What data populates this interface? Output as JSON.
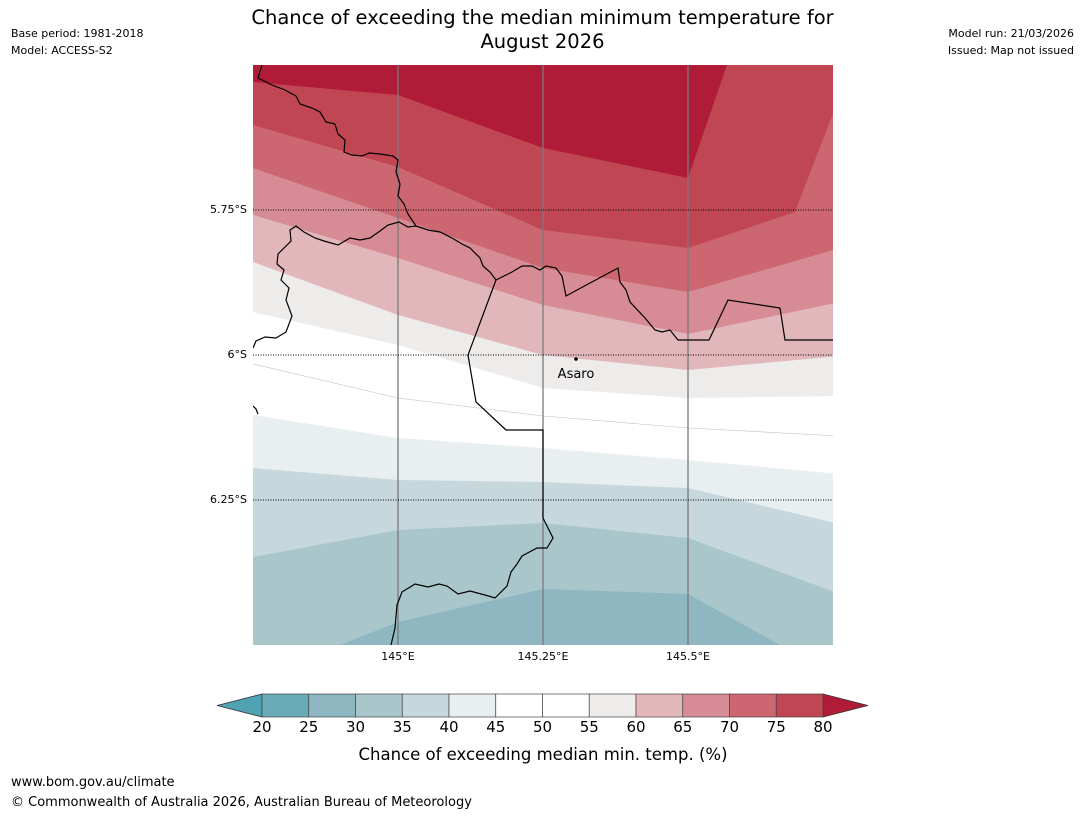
{
  "header": {
    "title_line1": "Chance of exceeding the median minimum temperature for",
    "title_line2": "August 2026",
    "base_period": "Base period: 1981-2018",
    "model": "Model: ACCESS-S2",
    "model_run": "Model run: 21/03/2026",
    "issued": "Issued: Map not issued"
  },
  "map": {
    "latitude_labels": [
      "5.75°S",
      "6°S",
      "6.25°S"
    ],
    "longitude_labels": [
      "145°E",
      "145.25°E",
      "145.5°E"
    ],
    "place": {
      "name": "Asaro"
    },
    "colors": {
      "p80plus": "#b01c38",
      "p75_80": "#c04653",
      "p70_75": "#cc6670",
      "p65_70": "#d78c95",
      "p60_65": "#e2b7bc",
      "p55_60": "#eeeceb",
      "p45_55": "#ffffff",
      "p40_45": "#e9eff1",
      "p35_40": "#c6d8dc",
      "p30_35": "#a9c6cb",
      "p25_30": "#8eb7c2",
      "p20_25": "#6aabb8"
    }
  },
  "colorbar": {
    "ticks": [
      "20",
      "25",
      "30",
      "35",
      "40",
      "45",
      "50",
      "55",
      "60",
      "65",
      "70",
      "75",
      "80"
    ],
    "colors": [
      "#6aabb8",
      "#8eb7c2",
      "#a9c6cb",
      "#c6d8dc",
      "#e9eff1",
      "#ffffff",
      "#ffffff",
      "#eeeceb",
      "#e2b7bc",
      "#d78c95",
      "#cc6670",
      "#c04653"
    ],
    "below_color": "#4fa3b3",
    "above_color": "#b01c38",
    "label": "Chance of exceeding median min. temp. (%)"
  },
  "footer": {
    "url": "www.bom.gov.au/climate",
    "copyright": "© Commonwealth of Australia 2026, Australian Bureau of Meteorology"
  }
}
